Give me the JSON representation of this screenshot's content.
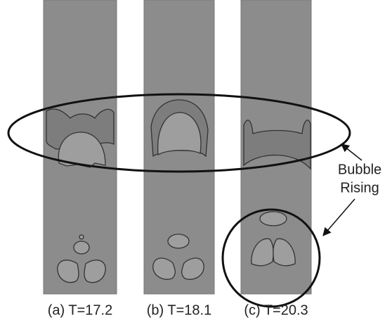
{
  "panels": [
    {
      "label": "(a) T=17.2"
    },
    {
      "label": "(b) T=18.1"
    },
    {
      "label": "(c) T=20.3"
    }
  ],
  "annotation": {
    "line1": "Bubble",
    "line2": "Rising"
  }
}
